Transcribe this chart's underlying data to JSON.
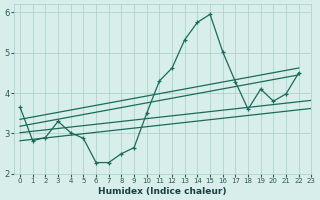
{
  "xlabel": "Humidex (Indice chaleur)",
  "bg_color": "#d8eeeb",
  "grid_color": "#a8ccc8",
  "line_color": "#1a6b5a",
  "xlim": [
    -0.5,
    23
  ],
  "ylim": [
    2,
    6.2
  ],
  "yticks": [
    2,
    3,
    4,
    5,
    6
  ],
  "xticks": [
    0,
    1,
    2,
    3,
    4,
    5,
    6,
    7,
    8,
    9,
    10,
    11,
    12,
    13,
    14,
    15,
    16,
    17,
    18,
    19,
    20,
    21,
    22,
    23
  ],
  "main_x": [
    0,
    1,
    2,
    3,
    4,
    5,
    6,
    7,
    8,
    9,
    10,
    11,
    12,
    13,
    14,
    15,
    16,
    17,
    18,
    19,
    20,
    21,
    22
  ],
  "main_y": [
    3.65,
    2.82,
    2.9,
    3.3,
    3.02,
    2.88,
    2.28,
    2.28,
    2.5,
    2.65,
    3.5,
    4.3,
    4.62,
    5.32,
    5.75,
    5.95,
    5.02,
    4.28,
    3.6,
    4.1,
    3.8,
    3.98,
    4.5
  ],
  "trend1_x": [
    0,
    23
  ],
  "trend1_y": [
    2.82,
    3.62
  ],
  "trend2_x": [
    0,
    23
  ],
  "trend2_y": [
    3.02,
    3.82
  ],
  "trend3_x": [
    0,
    22
  ],
  "trend3_y": [
    3.18,
    4.45
  ],
  "trend4_x": [
    0,
    22
  ],
  "trend4_y": [
    3.35,
    4.62
  ]
}
